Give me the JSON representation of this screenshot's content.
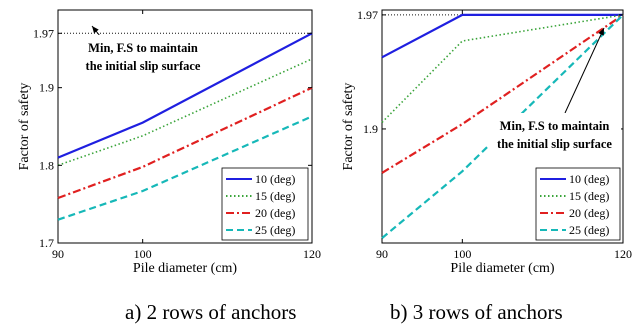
{
  "chart_data": [
    {
      "type": "line",
      "caption": "a) 2 rows of anchors",
      "xlabel": "Pile diameter (cm)",
      "ylabel": "Factor of safety",
      "x": [
        90,
        100,
        120
      ],
      "xticks": [
        "90",
        "100",
        "120"
      ],
      "xlim": [
        90,
        120
      ],
      "ylim": [
        1.7,
        2.0
      ],
      "yticks": [
        {
          "value": 1.7,
          "label": "1.7"
        },
        {
          "value": 1.8,
          "label": "1.8"
        },
        {
          "value": 1.9,
          "label": "1.9"
        },
        {
          "value": 1.97,
          "label": "1.97"
        }
      ],
      "grid": false,
      "legend_position": "bottom-right",
      "reference_line": {
        "y": 1.97
      },
      "annotation": {
        "lines": [
          "Min, F.S to maintain",
          "the initial slip surface"
        ]
      },
      "series": [
        {
          "name": "10 (deg)",
          "color": "#1f1fe0",
          "style": "solid",
          "values": [
            1.81,
            1.855,
            1.97
          ]
        },
        {
          "name": "15 (deg)",
          "color": "#3aa43a",
          "style": "dotted",
          "values": [
            1.8,
            1.838,
            1.937
          ]
        },
        {
          "name": "20 (deg)",
          "color": "#e02020",
          "style": "dashdot",
          "values": [
            1.758,
            1.798,
            1.9
          ]
        },
        {
          "name": "25 (deg)",
          "color": "#16b8b8",
          "style": "dashed",
          "values": [
            1.73,
            1.767,
            1.863
          ]
        }
      ]
    },
    {
      "type": "line",
      "caption": "b) 3 rows of anchors",
      "xlabel": "Pile diameter (cm)",
      "ylabel": "Factor of safety",
      "x": [
        90,
        100,
        120
      ],
      "xticks": [
        "90",
        "100",
        "120"
      ],
      "xlim": [
        90,
        120
      ],
      "ylim": [
        1.83,
        1.973
      ],
      "yticks": [
        {
          "value": 1.9,
          "label": "1.9"
        },
        {
          "value": 1.97,
          "label": "1.97"
        }
      ],
      "grid": false,
      "legend_position": "bottom-right",
      "reference_line": {
        "y": 1.97
      },
      "annotation": {
        "lines": [
          "Min, F.S to maintain",
          "the initial slip surface"
        ]
      },
      "series": [
        {
          "name": "10 (deg)",
          "color": "#1f1fe0",
          "style": "solid",
          "values": [
            1.944,
            1.97,
            1.97
          ]
        },
        {
          "name": "15 (deg)",
          "color": "#3aa43a",
          "style": "dotted",
          "values": [
            1.904,
            1.954,
            1.97
          ]
        },
        {
          "name": "20 (deg)",
          "color": "#e02020",
          "style": "dashdot",
          "values": [
            1.873,
            1.903,
            1.97
          ]
        },
        {
          "name": "25 (deg)",
          "color": "#16b8b8",
          "style": "dashed",
          "values": [
            1.833,
            1.874,
            1.97
          ]
        }
      ]
    }
  ]
}
